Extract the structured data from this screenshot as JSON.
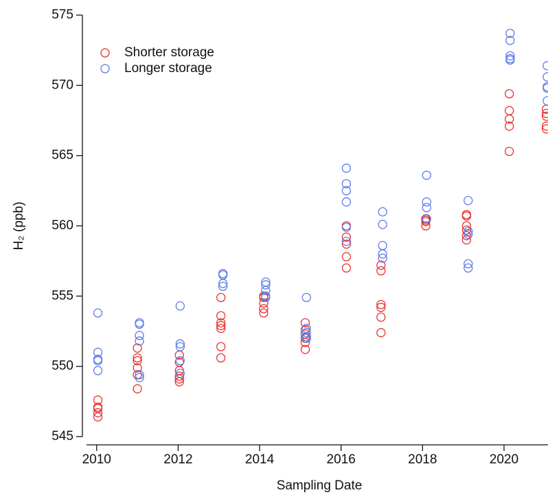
{
  "chart_data": {
    "type": "scatter",
    "xlabel": "Sampling Date",
    "ylabel": "H₂ (ppb)",
    "xlim": [
      2009.65,
      2021.08
    ],
    "ylim": [
      545,
      575
    ],
    "xticks": [
      2010,
      2012,
      2014,
      2016,
      2018,
      2020
    ],
    "yticks": [
      545,
      550,
      555,
      560,
      565,
      570,
      575
    ],
    "legend": "upper left",
    "series": [
      {
        "name": "Shorter storage",
        "color": "#e8312f",
        "x": [
          2010.03,
          2010.03,
          2010.03,
          2010.03,
          2010.03,
          2011.0,
          2011.0,
          2011.0,
          2011.0,
          2011.0,
          2011.0,
          2012.03,
          2012.03,
          2012.03,
          2012.03,
          2012.03,
          2012.03,
          2013.05,
          2013.05,
          2013.05,
          2013.05,
          2013.05,
          2013.05,
          2013.05,
          2014.1,
          2014.1,
          2014.1,
          2014.1,
          2014.1,
          2015.12,
          2015.12,
          2015.12,
          2015.12,
          2015.12,
          2015.12,
          2016.13,
          2016.13,
          2016.13,
          2016.13,
          2016.13,
          2016.98,
          2016.98,
          2016.98,
          2016.98,
          2016.98,
          2016.98,
          2018.08,
          2018.08,
          2018.08,
          2018.08,
          2019.08,
          2019.08,
          2019.08,
          2019.08,
          2019.08,
          2019.08,
          2020.13,
          2020.13,
          2020.13,
          2020.13,
          2020.13,
          2021.04,
          2021.04,
          2021.04,
          2021.04,
          2021.04
        ],
        "values": [
          547.6,
          547.1,
          547.0,
          546.7,
          546.4,
          551.3,
          550.6,
          550.4,
          549.9,
          549.4,
          548.4,
          550.8,
          550.3,
          549.7,
          549.3,
          549.1,
          548.9,
          554.9,
          553.6,
          553.1,
          552.9,
          552.7,
          551.4,
          550.6,
          555.0,
          554.9,
          554.5,
          554.1,
          553.8,
          553.1,
          552.6,
          552.3,
          552.0,
          551.7,
          551.2,
          560.0,
          559.2,
          558.7,
          557.8,
          557.0,
          557.2,
          556.8,
          554.4,
          554.2,
          553.5,
          552.4,
          560.5,
          560.4,
          560.3,
          560.0,
          560.8,
          560.7,
          560.0,
          559.3,
          559.0,
          559.7,
          569.4,
          568.2,
          567.6,
          567.1,
          565.3,
          568.3,
          568.0,
          567.8,
          567.1,
          566.9
        ]
      },
      {
        "name": "Longer storage",
        "color": "#5b7be8",
        "x": [
          2010.03,
          2010.03,
          2010.03,
          2010.03,
          2010.03,
          2011.05,
          2011.05,
          2011.05,
          2011.05,
          2011.05,
          2011.05,
          2012.05,
          2012.05,
          2012.05,
          2012.05,
          2012.05,
          2013.1,
          2013.1,
          2013.1,
          2013.1,
          2014.15,
          2014.15,
          2014.15,
          2014.15,
          2014.15,
          2015.15,
          2015.15,
          2015.15,
          2015.15,
          2015.15,
          2016.13,
          2016.13,
          2016.13,
          2016.13,
          2016.13,
          2016.13,
          2017.02,
          2017.02,
          2017.02,
          2017.02,
          2017.02,
          2018.1,
          2018.1,
          2018.1,
          2018.1,
          2019.12,
          2019.12,
          2019.12,
          2019.12,
          2019.12,
          2020.15,
          2020.15,
          2020.15,
          2020.15,
          2020.15,
          2021.06,
          2021.06,
          2021.06,
          2021.06,
          2021.06
        ],
        "values": [
          553.8,
          551.0,
          550.5,
          550.4,
          549.7,
          553.1,
          553.0,
          552.2,
          551.8,
          549.4,
          549.2,
          554.3,
          551.6,
          551.4,
          550.4,
          549.5,
          556.6,
          556.5,
          555.9,
          555.7,
          556.0,
          555.8,
          555.4,
          555.0,
          554.9,
          554.9,
          552.7,
          552.4,
          552.1,
          552.0,
          564.1,
          563.0,
          562.5,
          561.7,
          559.9,
          558.9,
          561.0,
          560.1,
          558.6,
          558.0,
          557.7,
          563.6,
          561.7,
          561.3,
          560.5,
          561.8,
          559.6,
          559.4,
          557.3,
          557.0,
          573.7,
          573.2,
          572.1,
          571.9,
          571.8,
          571.4,
          570.6,
          569.9,
          569.8,
          568.9
        ]
      }
    ]
  }
}
